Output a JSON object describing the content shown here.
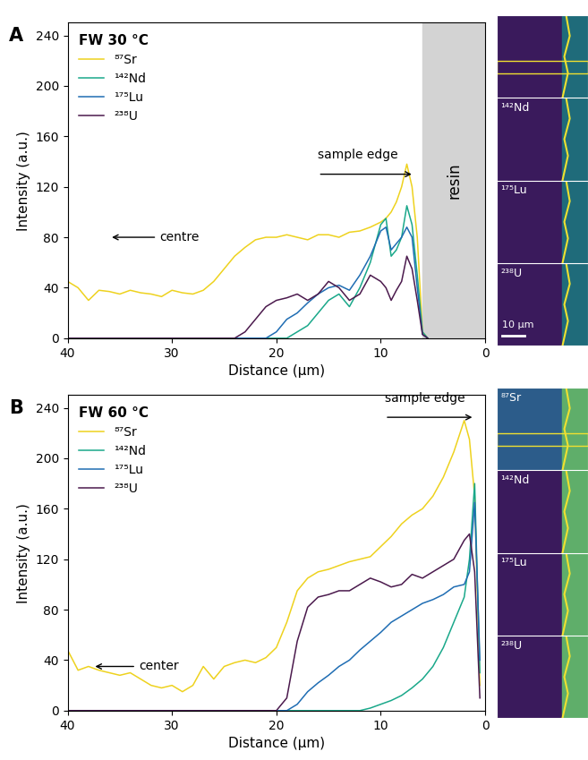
{
  "chart_data": [
    {
      "type": "line",
      "panel_label": "A",
      "title": "FW 30 °C",
      "x_label": "Distance (µm)",
      "y_label": "Intensity (a.u.)",
      "xlim": [
        40,
        0
      ],
      "xticks": [
        40,
        30,
        20,
        10,
        0
      ],
      "ylim": [
        0,
        250
      ],
      "yticks": [
        0,
        40,
        80,
        120,
        160,
        200,
        240
      ],
      "grid": false,
      "legend": "upper left",
      "annotations": [
        {
          "text": "sample edge"
        },
        {
          "text": "centre"
        }
      ],
      "shaded_region": {
        "x": [
          6,
          0
        ],
        "label": "resin"
      },
      "maps": {
        "labels": [
          null,
          "¹⁴²Nd",
          "¹⁷⁵Lu",
          "²³⁸U"
        ],
        "scale_bar": "10 µm"
      },
      "x": [
        40,
        39,
        38,
        37,
        36,
        35,
        34,
        33,
        32,
        31,
        30,
        29,
        28,
        27,
        26,
        25,
        24,
        23,
        22,
        21,
        20,
        19,
        18,
        17,
        16,
        15,
        14,
        13,
        12,
        11,
        10,
        9.5,
        9,
        8.5,
        8,
        7.5,
        7,
        6.5,
        6,
        5.5
      ],
      "series": [
        {
          "name": "⁸⁷Sr",
          "color": "#eed21e",
          "values": [
            45,
            40,
            30,
            38,
            37,
            35,
            38,
            36,
            35,
            33,
            38,
            36,
            35,
            38,
            45,
            55,
            65,
            72,
            78,
            80,
            80,
            82,
            80,
            78,
            82,
            82,
            80,
            84,
            85,
            88,
            92,
            95,
            100,
            108,
            120,
            138,
            120,
            80,
            5,
            0
          ]
        },
        {
          "name": "¹⁴²Nd",
          "color": "#1aa88a",
          "values": [
            0,
            0,
            0,
            0,
            0,
            0,
            0,
            0,
            0,
            0,
            0,
            0,
            0,
            0,
            0,
            0,
            0,
            0,
            0,
            0,
            0,
            0,
            5,
            10,
            20,
            30,
            35,
            25,
            40,
            60,
            90,
            95,
            65,
            70,
            80,
            105,
            90,
            50,
            5,
            0
          ]
        },
        {
          "name": "¹⁷⁵Lu",
          "color": "#1f6db3",
          "values": [
            0,
            0,
            0,
            0,
            0,
            0,
            0,
            0,
            0,
            0,
            0,
            0,
            0,
            0,
            0,
            0,
            0,
            0,
            0,
            0,
            5,
            15,
            20,
            28,
            35,
            40,
            42,
            38,
            50,
            65,
            85,
            88,
            70,
            75,
            80,
            88,
            80,
            40,
            3,
            0
          ]
        },
        {
          "name": "²³⁸U",
          "color": "#4b1a4d",
          "values": [
            0,
            0,
            0,
            0,
            0,
            0,
            0,
            0,
            0,
            0,
            0,
            0,
            0,
            0,
            0,
            0,
            0,
            5,
            15,
            25,
            30,
            32,
            35,
            30,
            35,
            45,
            40,
            30,
            35,
            50,
            45,
            40,
            30,
            38,
            45,
            65,
            55,
            30,
            3,
            0
          ]
        }
      ]
    },
    {
      "type": "line",
      "panel_label": "B",
      "title": "FW 60 °C",
      "x_label": "Distance (µm)",
      "y_label": "Intensity (a.u.)",
      "xlim": [
        40,
        0
      ],
      "xticks": [
        40,
        30,
        20,
        10,
        0
      ],
      "ylim": [
        0,
        250
      ],
      "yticks": [
        0,
        40,
        80,
        120,
        160,
        200,
        240
      ],
      "grid": false,
      "legend": "upper left",
      "annotations": [
        {
          "text": "sample edge"
        },
        {
          "text": "center"
        }
      ],
      "maps": {
        "labels": [
          "⁸⁷Sr",
          "¹⁴²Nd",
          "¹⁷⁵Lu",
          "²³⁸U"
        ]
      },
      "x": [
        40,
        39,
        38,
        37,
        36,
        35,
        34,
        33,
        32,
        31,
        30,
        29,
        28,
        27,
        26,
        25,
        24,
        23,
        22,
        21,
        20,
        19,
        18,
        17,
        16,
        15,
        14,
        13,
        12,
        11,
        10,
        9,
        8,
        7,
        6,
        5,
        4,
        3,
        2,
        1.5,
        1,
        0.5
      ],
      "series": [
        {
          "name": "⁸⁷Sr",
          "color": "#eed21e",
          "values": [
            48,
            32,
            35,
            32,
            30,
            28,
            30,
            25,
            20,
            18,
            20,
            15,
            20,
            35,
            25,
            35,
            38,
            40,
            38,
            42,
            50,
            70,
            95,
            105,
            110,
            112,
            115,
            118,
            120,
            122,
            130,
            138,
            148,
            155,
            160,
            170,
            185,
            205,
            230,
            215,
            170,
            20
          ]
        },
        {
          "name": "¹⁴²Nd",
          "color": "#1aa88a",
          "values": [
            0,
            0,
            0,
            0,
            0,
            0,
            0,
            0,
            0,
            0,
            0,
            0,
            0,
            0,
            0,
            0,
            0,
            0,
            0,
            0,
            0,
            0,
            0,
            0,
            0,
            0,
            0,
            0,
            0,
            2,
            5,
            8,
            12,
            18,
            25,
            35,
            50,
            70,
            90,
            120,
            180,
            30
          ]
        },
        {
          "name": "¹⁷⁵Lu",
          "color": "#1f6db3",
          "values": [
            0,
            0,
            0,
            0,
            0,
            0,
            0,
            0,
            0,
            0,
            0,
            0,
            0,
            0,
            0,
            0,
            0,
            0,
            0,
            0,
            0,
            0,
            5,
            15,
            22,
            28,
            35,
            40,
            48,
            55,
            62,
            70,
            75,
            80,
            85,
            88,
            92,
            98,
            100,
            110,
            165,
            40
          ]
        },
        {
          "name": "²³⁸U",
          "color": "#4b1a4d",
          "values": [
            0,
            0,
            0,
            0,
            0,
            0,
            0,
            0,
            0,
            0,
            0,
            0,
            0,
            0,
            0,
            0,
            0,
            0,
            0,
            0,
            0,
            10,
            55,
            82,
            90,
            92,
            95,
            95,
            100,
            105,
            102,
            98,
            100,
            108,
            105,
            110,
            115,
            120,
            135,
            140,
            110,
            10
          ]
        }
      ]
    }
  ]
}
